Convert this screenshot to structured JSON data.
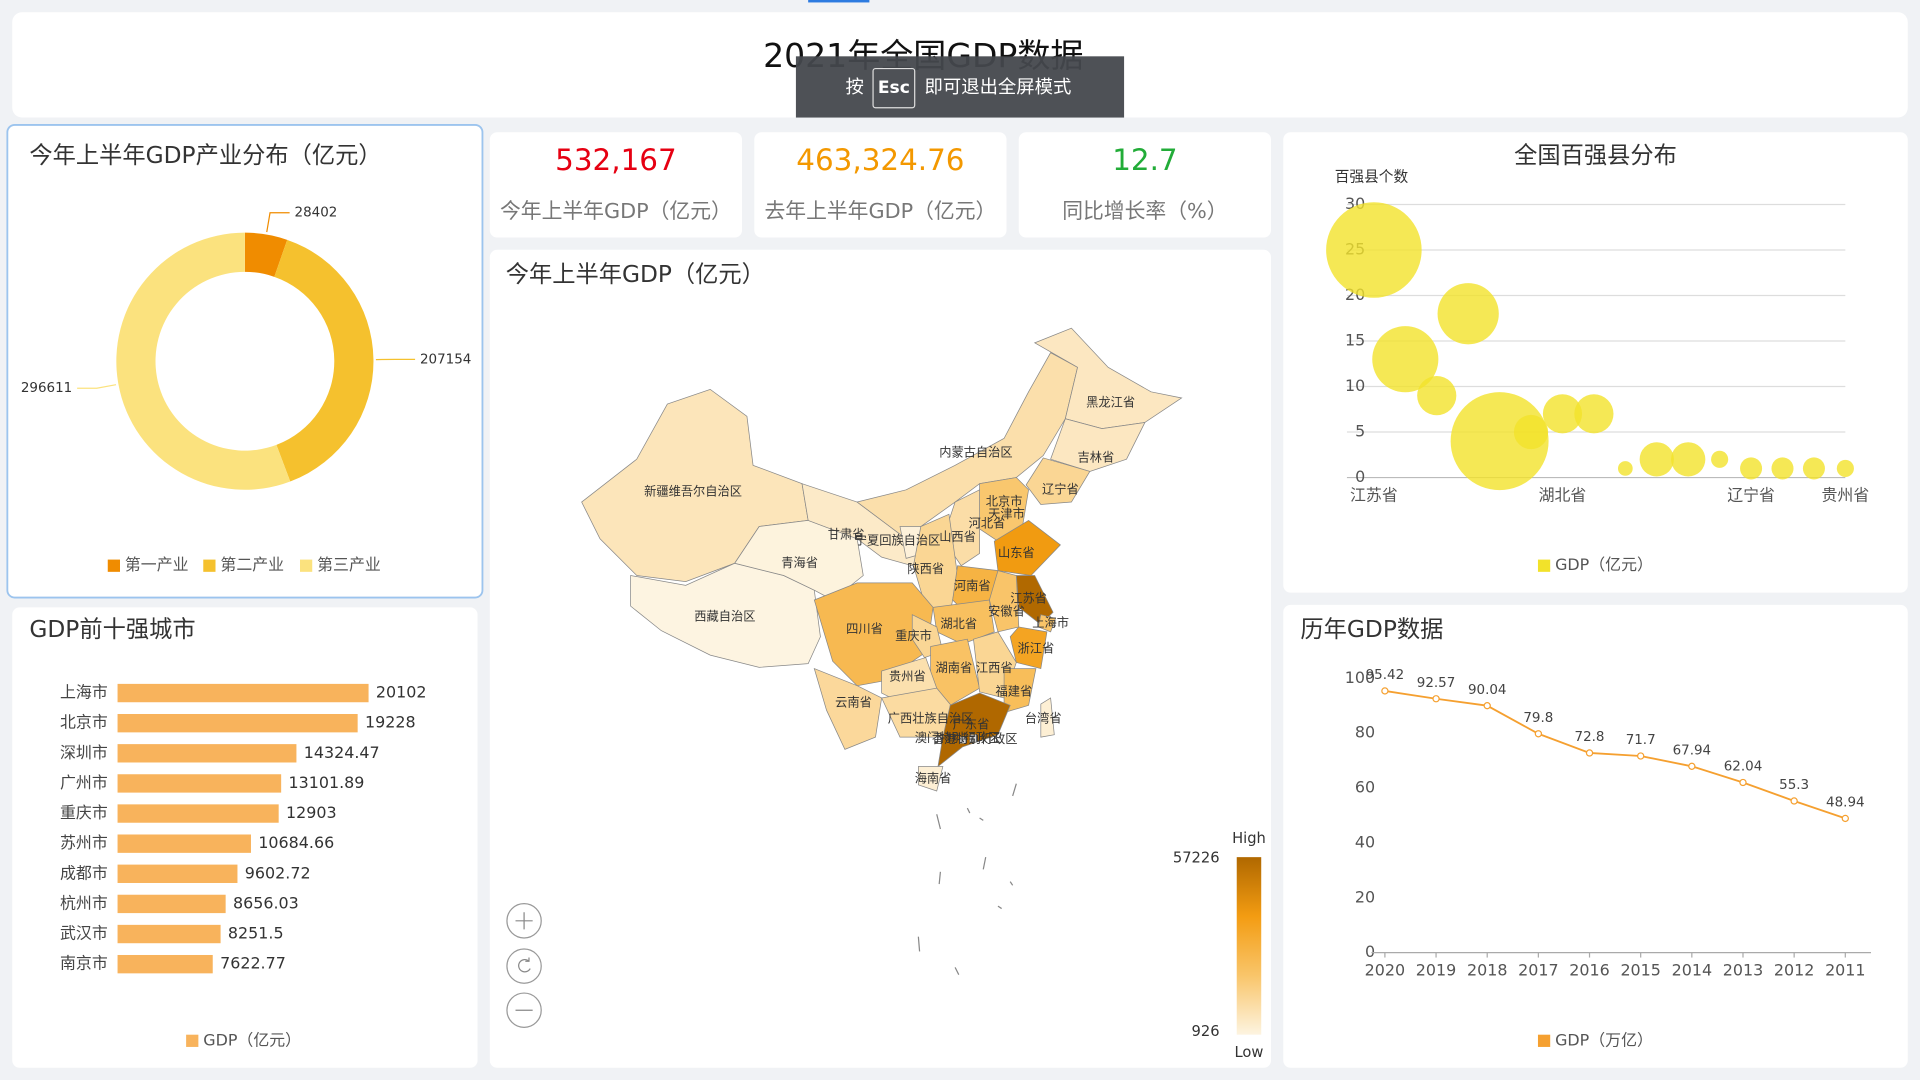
{
  "title": "2021年全国GDP数据",
  "fullscreen_hint": {
    "prefix": "按",
    "key": "Esc",
    "suffix": "即可退出全屏模式"
  },
  "kpis": [
    {
      "value": 532167,
      "value_label": "532,167",
      "label": "今年上半年GDP（亿元）",
      "color": "#e60012"
    },
    {
      "value": 463324.76,
      "value_label": "463,324.76",
      "label": "去年上半年GDP（亿元）",
      "color": "#f39800"
    },
    {
      "value": 12.7,
      "label": "同比增长率（%）",
      "color": "#22ac38"
    }
  ],
  "chart_data": [
    {
      "type": "pie",
      "title": "今年上半年GDP产业分布（亿元）",
      "donut": true,
      "categories": [
        "第一产业",
        "第二产业",
        "第三产业"
      ],
      "values": [
        28402,
        207154,
        296611
      ],
      "colors": [
        "#f08c00",
        "#f5c12e",
        "#fbe27e"
      ]
    },
    {
      "type": "hbar",
      "title": "GDP前十强城市",
      "legend": "GDP（亿元）",
      "color": "#f8b35c",
      "categories": [
        "上海市",
        "北京市",
        "深圳市",
        "广州市",
        "重庆市",
        "苏州市",
        "成都市",
        "杭州市",
        "武汉市",
        "南京市"
      ],
      "values": [
        20102,
        19228,
        14324.47,
        13101.89,
        12903,
        10684.66,
        9602.72,
        8656.03,
        8251.5,
        7622.77
      ]
    },
    {
      "type": "map",
      "title": "今年上半年GDP（亿元）",
      "regions": [
        {
          "name": "新疆维吾尔自治区",
          "value": 7000
        },
        {
          "name": "西藏自治区",
          "value": 926
        },
        {
          "name": "青海省",
          "value": 1500
        },
        {
          "name": "甘肃省",
          "value": 4800
        },
        {
          "name": "内蒙古自治区",
          "value": 9500
        },
        {
          "name": "黑龙江省",
          "value": 6000
        },
        {
          "name": "吉林省",
          "value": 6000
        },
        {
          "name": "辽宁省",
          "value": 13000
        },
        {
          "name": "北京市",
          "value": 19228
        },
        {
          "name": "天津市",
          "value": 7300
        },
        {
          "name": "河北省",
          "value": 19000
        },
        {
          "name": "山西省",
          "value": 10000
        },
        {
          "name": "宁夏回族自治区",
          "value": 2100
        },
        {
          "name": "陕西省",
          "value": 13000
        },
        {
          "name": "山东省",
          "value": 39000
        },
        {
          "name": "河南省",
          "value": 28000
        },
        {
          "name": "江苏省",
          "value": 56909
        },
        {
          "name": "安徽省",
          "value": 20000
        },
        {
          "name": "上海市",
          "value": 20102
        },
        {
          "name": "浙江省",
          "value": 35000
        },
        {
          "name": "湖北省",
          "value": 22000
        },
        {
          "name": "四川省",
          "value": 25000
        },
        {
          "name": "重庆市",
          "value": 12903
        },
        {
          "name": "湖南省",
          "value": 21000
        },
        {
          "name": "江西省",
          "value": 13000
        },
        {
          "name": "福建省",
          "value": 23000
        },
        {
          "name": "贵州省",
          "value": 9000
        },
        {
          "name": "云南省",
          "value": 12000
        },
        {
          "name": "广西壮族自治区",
          "value": 11000
        },
        {
          "name": "广东省",
          "value": 57226
        },
        {
          "name": "台湾省",
          "value": 3000
        },
        {
          "name": "香港特别行政区",
          "value": null
        },
        {
          "name": "澳门特别行政区",
          "value": null
        },
        {
          "name": "海南省",
          "value": 3000
        }
      ],
      "visual_map": {
        "min": 926,
        "max": 57226,
        "high_label": "High",
        "low_label": "Low",
        "colors": [
          "#fdf4e1",
          "#f9c56a",
          "#f39c12",
          "#b06800"
        ]
      }
    },
    {
      "type": "scatter",
      "title": "全国百强县分布",
      "y_label": "百强县个数",
      "legend": "GDP（亿元）",
      "color": "#f2e22a",
      "categories": [
        "江苏省",
        null,
        null,
        null,
        null,
        null,
        "湖北省",
        null,
        null,
        null,
        null,
        null,
        "辽宁省",
        null,
        null,
        "贵州省"
      ],
      "values": [
        25,
        13,
        9,
        18,
        4,
        5,
        7,
        7,
        1,
        2,
        2,
        2,
        1,
        1,
        1,
        1
      ],
      "sizes": [
        15210,
        7290,
        2560,
        6250,
        16000,
        1960,
        2560,
        2560,
        360,
        1960,
        1960,
        490,
        810,
        810,
        810,
        490
      ],
      "ylim": [
        0,
        30
      ],
      "yticks": [
        0,
        5,
        10,
        15,
        20,
        25,
        30
      ],
      "grid": true
    },
    {
      "type": "line",
      "title": "历年GDP数据",
      "legend": "GDP（万亿）",
      "color": "#f5a030",
      "categories": [
        "2020",
        "2019",
        "2018",
        "2017",
        "2016",
        "2015",
        "2014",
        "2013",
        "2012",
        "2011"
      ],
      "values": [
        95.42,
        92.57,
        90.04,
        79.8,
        72.8,
        71.7,
        67.94,
        62.04,
        55.3,
        48.94
      ],
      "ylim": [
        0,
        100
      ],
      "yticks": [
        0,
        20,
        40,
        60,
        80,
        100
      ],
      "grid": false
    }
  ]
}
